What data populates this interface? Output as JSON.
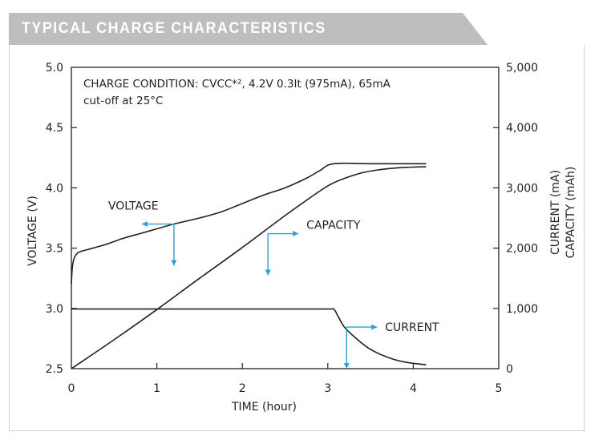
{
  "header": {
    "title": "TYPICAL CHARGE CHARACTERISTICS"
  },
  "colors": {
    "header_bg": "#bebebf",
    "line": "#231f20",
    "arrow": "#2a9fd6",
    "panel_border": "#cfcfcf"
  },
  "chart_data": {
    "type": "line",
    "title": "TYPICAL CHARGE CHARACTERISTICS",
    "annotation_line1": "CHARGE CONDITION: CVCC*², 4.2V 0.3It (975mA), 65mA",
    "annotation_line2": "cut-off at 25°C",
    "xlabel": "TIME (hour)",
    "ylabel_left": "VOLTAGE (V)",
    "ylabel_right_1": "CURRENT (mA)",
    "ylabel_right_2": "CAPACITY (mAh)",
    "xlim": [
      0,
      5
    ],
    "ylim_left": [
      2.5,
      5.0
    ],
    "ylim_right": [
      0,
      5000
    ],
    "x_ticks": [
      "0",
      "1",
      "2",
      "3",
      "4",
      "5"
    ],
    "y_left_ticks": [
      "2.5",
      "3.0",
      "3.5",
      "4.0",
      "4.5",
      "5.0"
    ],
    "y_right_ticks": [
      "0",
      "1,000",
      "2,000",
      "3,000",
      "4,000",
      "5,000"
    ],
    "grid": false,
    "series": [
      {
        "name": "VOLTAGE",
        "axis": "left",
        "x": [
          0,
          0.01,
          0.03,
          0.06,
          0.1,
          0.2,
          0.4,
          0.6,
          0.8,
          1.0,
          1.2,
          1.5,
          1.75,
          2.0,
          2.25,
          2.5,
          2.75,
          2.9,
          3.07,
          3.5,
          4.0,
          4.15
        ],
        "values": [
          3.2,
          3.33,
          3.41,
          3.45,
          3.47,
          3.49,
          3.53,
          3.58,
          3.62,
          3.66,
          3.7,
          3.75,
          3.8,
          3.87,
          3.94,
          4.0,
          4.08,
          4.14,
          4.2,
          4.2,
          4.2,
          4.2
        ]
      },
      {
        "name": "CAPACITY",
        "axis": "right",
        "x": [
          0,
          0.5,
          1.0,
          1.5,
          2.0,
          2.5,
          2.9,
          3.05,
          3.2,
          3.4,
          3.6,
          3.8,
          4.0,
          4.15
        ],
        "values": [
          0,
          480,
          980,
          1500,
          2010,
          2540,
          2940,
          3070,
          3160,
          3250,
          3300,
          3330,
          3345,
          3350
        ]
      },
      {
        "name": "CURRENT",
        "axis": "right",
        "x": [
          0,
          0.5,
          1.0,
          1.5,
          2.0,
          2.5,
          3.0,
          3.07,
          3.12,
          3.2,
          3.35,
          3.5,
          3.7,
          3.9,
          4.15
        ],
        "values": [
          990,
          990,
          990,
          990,
          990,
          990,
          990,
          985,
          870,
          680,
          480,
          320,
          190,
          110,
          65
        ]
      }
    ],
    "series_labels": [
      {
        "name": "VOLTAGE",
        "label": "VOLTAGE",
        "arrow_anchor_x": 1.2,
        "arrow_anchor_y_left": 3.7,
        "direction": "left"
      },
      {
        "name": "CAPACITY",
        "label": "CAPACITY",
        "arrow_anchor_x": 2.3,
        "arrow_anchor_y_right": 2240,
        "direction": "right"
      },
      {
        "name": "CURRENT",
        "label": "CURRENT",
        "arrow_anchor_x": 3.22,
        "arrow_anchor_y_right": 690,
        "direction": "right"
      }
    ]
  }
}
